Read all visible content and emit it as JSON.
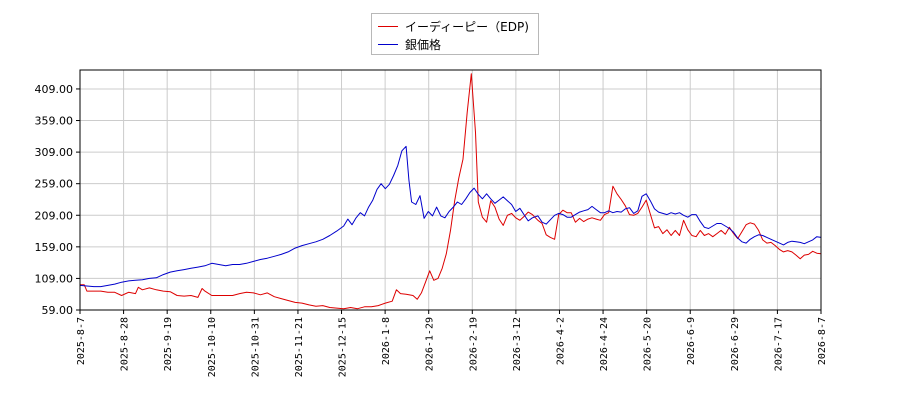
{
  "chart_data": {
    "type": "line",
    "title": "",
    "xlabel": "",
    "ylabel": "",
    "x_ticks": [
      "2025-8-7",
      "2025-8-28",
      "2025-9-19",
      "2025-10-10",
      "2025-10-31",
      "2025-11-21",
      "2025-12-15",
      "2026-1-8",
      "2026-1-29",
      "2026-2-19",
      "2026-3-12",
      "2026-4-2",
      "2026-4-24",
      "2026-5-20",
      "2026-6-9",
      "2026-6-29",
      "2026-7-17",
      "2026-8-7"
    ],
    "y_ticks": [
      "59.00",
      "109.00",
      "159.00",
      "209.00",
      "259.00",
      "309.00",
      "359.00",
      "409.00"
    ],
    "ylim": [
      59,
      439
    ],
    "grid": true,
    "legend_position": "top-center",
    "series": [
      {
        "name": "イーディーピー（EDP)",
        "color": "#dd0000",
        "points": [
          [
            0,
            99
          ],
          [
            3,
            99
          ],
          [
            5,
            89
          ],
          [
            10,
            89
          ],
          [
            15,
            89
          ],
          [
            20,
            87
          ],
          [
            25,
            87
          ],
          [
            30,
            82
          ],
          [
            35,
            87
          ],
          [
            40,
            85
          ],
          [
            42,
            95
          ],
          [
            45,
            91
          ],
          [
            50,
            94
          ],
          [
            55,
            91
          ],
          [
            60,
            89
          ],
          [
            65,
            88
          ],
          [
            70,
            82
          ],
          [
            75,
            81
          ],
          [
            80,
            82
          ],
          [
            85,
            79
          ],
          [
            88,
            93
          ],
          [
            90,
            89
          ],
          [
            95,
            82
          ],
          [
            100,
            82
          ],
          [
            105,
            82
          ],
          [
            110,
            82
          ],
          [
            115,
            85
          ],
          [
            120,
            87
          ],
          [
            125,
            86
          ],
          [
            130,
            83
          ],
          [
            135,
            86
          ],
          [
            140,
            80
          ],
          [
            145,
            77
          ],
          [
            150,
            74
          ],
          [
            155,
            71
          ],
          [
            160,
            70
          ],
          [
            165,
            67
          ],
          [
            170,
            65
          ],
          [
            175,
            66
          ],
          [
            180,
            63
          ],
          [
            185,
            62
          ],
          [
            190,
            61
          ],
          [
            195,
            63
          ],
          [
            200,
            61
          ],
          [
            205,
            64
          ],
          [
            210,
            64
          ],
          [
            215,
            66
          ],
          [
            220,
            70
          ],
          [
            225,
            73
          ],
          [
            228,
            91
          ],
          [
            231,
            85
          ],
          [
            235,
            84
          ],
          [
            240,
            82
          ],
          [
            243,
            76
          ],
          [
            246,
            86
          ],
          [
            249,
            103
          ],
          [
            252,
            121
          ],
          [
            255,
            106
          ],
          [
            258,
            109
          ],
          [
            261,
            125
          ],
          [
            264,
            148
          ],
          [
            267,
            185
          ],
          [
            270,
            232
          ],
          [
            273,
            268
          ],
          [
            276,
            298
          ],
          [
            279,
            372
          ],
          [
            282,
            433
          ],
          [
            285,
            340
          ],
          [
            287,
            230
          ],
          [
            290,
            206
          ],
          [
            293,
            198
          ],
          [
            296,
            232
          ],
          [
            299,
            222
          ],
          [
            302,
            203
          ],
          [
            305,
            193
          ],
          [
            308,
            209
          ],
          [
            311,
            212
          ],
          [
            314,
            205
          ],
          [
            317,
            201
          ],
          [
            320,
            207
          ],
          [
            323,
            214
          ],
          [
            326,
            210
          ],
          [
            330,
            201
          ],
          [
            333,
            196
          ],
          [
            336,
            178
          ],
          [
            339,
            174
          ],
          [
            342,
            171
          ],
          [
            345,
            210
          ],
          [
            348,
            217
          ],
          [
            351,
            213
          ],
          [
            354,
            213
          ],
          [
            357,
            198
          ],
          [
            360,
            204
          ],
          [
            363,
            199
          ],
          [
            366,
            203
          ],
          [
            369,
            205
          ],
          [
            372,
            203
          ],
          [
            375,
            201
          ],
          [
            378,
            210
          ],
          [
            381,
            213
          ],
          [
            384,
            255
          ],
          [
            387,
            243
          ],
          [
            390,
            234
          ],
          [
            393,
            224
          ],
          [
            396,
            210
          ],
          [
            399,
            209
          ],
          [
            402,
            212
          ],
          [
            405,
            222
          ],
          [
            408,
            233
          ],
          [
            411,
            211
          ],
          [
            414,
            189
          ],
          [
            417,
            191
          ],
          [
            420,
            180
          ],
          [
            423,
            186
          ],
          [
            426,
            177
          ],
          [
            429,
            185
          ],
          [
            432,
            177
          ],
          [
            435,
            201
          ],
          [
            438,
            186
          ],
          [
            441,
            177
          ],
          [
            444,
            175
          ],
          [
            447,
            185
          ],
          [
            450,
            177
          ],
          [
            453,
            180
          ],
          [
            456,
            175
          ],
          [
            459,
            180
          ],
          [
            462,
            185
          ],
          [
            465,
            179
          ],
          [
            468,
            190
          ],
          [
            471,
            180
          ],
          [
            474,
            172
          ],
          [
            477,
            183
          ],
          [
            480,
            194
          ],
          [
            483,
            197
          ],
          [
            486,
            195
          ],
          [
            489,
            185
          ],
          [
            492,
            170
          ],
          [
            495,
            165
          ],
          [
            498,
            166
          ],
          [
            501,
            161
          ],
          [
            504,
            155
          ],
          [
            507,
            151
          ],
          [
            510,
            153
          ],
          [
            513,
            151
          ],
          [
            516,
            146
          ],
          [
            519,
            140
          ],
          [
            522,
            146
          ],
          [
            525,
            147
          ],
          [
            528,
            152
          ],
          [
            531,
            149
          ],
          [
            534,
            148
          ]
        ]
      },
      {
        "name": "銀価格",
        "color": "#0000cc",
        "points": [
          [
            0,
            98
          ],
          [
            5,
            97
          ],
          [
            10,
            96
          ],
          [
            15,
            96
          ],
          [
            20,
            98
          ],
          [
            25,
            100
          ],
          [
            30,
            103
          ],
          [
            35,
            105
          ],
          [
            40,
            106
          ],
          [
            45,
            107
          ],
          [
            50,
            109
          ],
          [
            55,
            110
          ],
          [
            60,
            115
          ],
          [
            65,
            119
          ],
          [
            70,
            121
          ],
          [
            75,
            123
          ],
          [
            80,
            125
          ],
          [
            85,
            127
          ],
          [
            90,
            129
          ],
          [
            95,
            133
          ],
          [
            100,
            131
          ],
          [
            105,
            129
          ],
          [
            110,
            131
          ],
          [
            115,
            131
          ],
          [
            120,
            133
          ],
          [
            125,
            136
          ],
          [
            130,
            139
          ],
          [
            135,
            141
          ],
          [
            140,
            144
          ],
          [
            145,
            147
          ],
          [
            150,
            151
          ],
          [
            155,
            157
          ],
          [
            160,
            161
          ],
          [
            165,
            164
          ],
          [
            170,
            167
          ],
          [
            175,
            171
          ],
          [
            180,
            177
          ],
          [
            185,
            184
          ],
          [
            190,
            192
          ],
          [
            193,
            203
          ],
          [
            196,
            194
          ],
          [
            199,
            205
          ],
          [
            202,
            213
          ],
          [
            205,
            208
          ],
          [
            208,
            222
          ],
          [
            211,
            233
          ],
          [
            214,
            250
          ],
          [
            217,
            259
          ],
          [
            220,
            251
          ],
          [
            223,
            258
          ],
          [
            226,
            272
          ],
          [
            229,
            288
          ],
          [
            232,
            311
          ],
          [
            235,
            318
          ],
          [
            237,
            265
          ],
          [
            239,
            230
          ],
          [
            242,
            226
          ],
          [
            245,
            240
          ],
          [
            248,
            204
          ],
          [
            251,
            215
          ],
          [
            254,
            208
          ],
          [
            257,
            222
          ],
          [
            260,
            208
          ],
          [
            263,
            205
          ],
          [
            266,
            215
          ],
          [
            269,
            222
          ],
          [
            272,
            230
          ],
          [
            275,
            226
          ],
          [
            278,
            235
          ],
          [
            281,
            245
          ],
          [
            284,
            252
          ],
          [
            287,
            242
          ],
          [
            290,
            235
          ],
          [
            293,
            243
          ],
          [
            296,
            235
          ],
          [
            299,
            228
          ],
          [
            302,
            233
          ],
          [
            305,
            238
          ],
          [
            308,
            232
          ],
          [
            311,
            226
          ],
          [
            314,
            215
          ],
          [
            317,
            220
          ],
          [
            320,
            210
          ],
          [
            323,
            200
          ],
          [
            326,
            205
          ],
          [
            330,
            208
          ],
          [
            333,
            198
          ],
          [
            336,
            195
          ],
          [
            339,
            202
          ],
          [
            342,
            209
          ],
          [
            345,
            212
          ],
          [
            348,
            210
          ],
          [
            351,
            206
          ],
          [
            354,
            206
          ],
          [
            357,
            210
          ],
          [
            360,
            214
          ],
          [
            363,
            216
          ],
          [
            366,
            218
          ],
          [
            369,
            223
          ],
          [
            372,
            218
          ],
          [
            375,
            213
          ],
          [
            378,
            213
          ],
          [
            381,
            216
          ],
          [
            384,
            213
          ],
          [
            387,
            215
          ],
          [
            390,
            214
          ],
          [
            393,
            219
          ],
          [
            396,
            221
          ],
          [
            399,
            212
          ],
          [
            402,
            216
          ],
          [
            405,
            239
          ],
          [
            408,
            243
          ],
          [
            411,
            232
          ],
          [
            414,
            219
          ],
          [
            417,
            214
          ],
          [
            420,
            212
          ],
          [
            423,
            210
          ],
          [
            426,
            213
          ],
          [
            429,
            211
          ],
          [
            432,
            213
          ],
          [
            435,
            209
          ],
          [
            438,
            206
          ],
          [
            441,
            210
          ],
          [
            444,
            210
          ],
          [
            447,
            199
          ],
          [
            450,
            190
          ],
          [
            453,
            188
          ],
          [
            456,
            192
          ],
          [
            459,
            196
          ],
          [
            462,
            196
          ],
          [
            465,
            192
          ],
          [
            468,
            188
          ],
          [
            471,
            182
          ],
          [
            474,
            173
          ],
          [
            477,
            167
          ],
          [
            480,
            165
          ],
          [
            483,
            171
          ],
          [
            486,
            175
          ],
          [
            489,
            178
          ],
          [
            492,
            177
          ],
          [
            495,
            174
          ],
          [
            498,
            171
          ],
          [
            501,
            168
          ],
          [
            504,
            165
          ],
          [
            507,
            162
          ],
          [
            510,
            166
          ],
          [
            513,
            168
          ],
          [
            516,
            167
          ],
          [
            519,
            166
          ],
          [
            522,
            164
          ],
          [
            525,
            167
          ],
          [
            528,
            170
          ],
          [
            531,
            175
          ],
          [
            534,
            174
          ]
        ]
      }
    ]
  }
}
